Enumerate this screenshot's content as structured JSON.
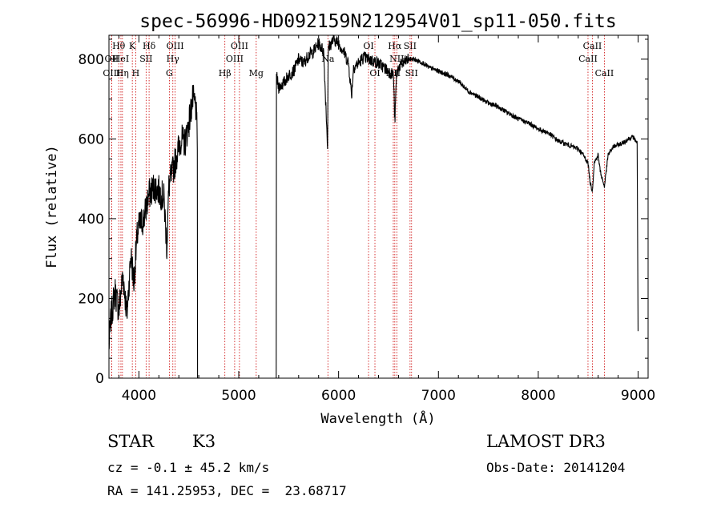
{
  "chart_data": {
    "type": "line",
    "title": "spec-56996-HD092159N212954V01_sp11-050.fits",
    "xlabel": "Wavelength (Å)",
    "ylabel": "Flux (relative)",
    "xlim": [
      3700,
      9100
    ],
    "ylim": [
      0,
      860
    ],
    "xticks": [
      4000,
      5000,
      6000,
      7000,
      8000,
      9000
    ],
    "yticks": [
      0,
      200,
      400,
      600,
      800
    ],
    "grid": false,
    "spectrum_anchors": {
      "x": [
        3700,
        3720,
        3760,
        3800,
        3840,
        3880,
        3920,
        3950,
        3980,
        4000,
        4050,
        4100,
        4150,
        4200,
        4250,
        4280,
        4300,
        4340,
        4380,
        4420,
        4460,
        4500,
        4540,
        4570,
        4585,
        4586,
        5375,
        5376,
        5400,
        5450,
        5500,
        5550,
        5600,
        5650,
        5700,
        5750,
        5800,
        5850,
        5890,
        5894,
        5900,
        5950,
        6000,
        6050,
        6100,
        6130,
        6150,
        6200,
        6250,
        6300,
        6350,
        6400,
        6450,
        6500,
        6550,
        6563,
        6580,
        6600,
        6650,
        6700,
        6750,
        6800,
        6850,
        6900,
        7000,
        7100,
        7200,
        7300,
        7400,
        7500,
        7600,
        7700,
        7800,
        7900,
        8000,
        8100,
        8200,
        8300,
        8400,
        8450,
        8498,
        8520,
        8542,
        8560,
        8600,
        8620,
        8662,
        8700,
        8750,
        8800,
        8850,
        8900,
        8950,
        8990,
        9000
      ],
      "y": [
        80,
        150,
        220,
        170,
        260,
        160,
        310,
        240,
        350,
        380,
        400,
        460,
        480,
        470,
        450,
        330,
        480,
        520,
        560,
        600,
        590,
        640,
        700,
        680,
        600,
        0,
        0,
        760,
        730,
        740,
        760,
        770,
        800,
        790,
        810,
        820,
        840,
        820,
        580,
        790,
        830,
        850,
        840,
        820,
        790,
        710,
        780,
        790,
        805,
        800,
        795,
        790,
        780,
        770,
        760,
        640,
        760,
        780,
        790,
        800,
        800,
        795,
        790,
        780,
        770,
        760,
        745,
        720,
        705,
        690,
        680,
        665,
        650,
        640,
        625,
        615,
        595,
        585,
        575,
        560,
        540,
        490,
        470,
        540,
        560,
        520,
        480,
        560,
        580,
        585,
        590,
        600,
        605,
        590,
        120
      ]
    },
    "line_markers": [
      {
        "label": "Hθ",
        "x": 3798,
        "row": 0
      },
      {
        "label": "OII",
        "x": 3727,
        "row": 1
      },
      {
        "label": "OIII",
        "x": 3727,
        "row": 2
      },
      {
        "label": "HeI",
        "x": 3820,
        "row": 1
      },
      {
        "label": "Hη",
        "x": 3835,
        "row": 2
      },
      {
        "label": "K",
        "x": 3934,
        "row": 0
      },
      {
        "label": "SII",
        "x": 4072,
        "row": 1
      },
      {
        "label": "H",
        "x": 3968,
        "row": 2
      },
      {
        "label": "Hδ",
        "x": 4102,
        "row": 0
      },
      {
        "label": "OIII",
        "x": 4363,
        "row": 0
      },
      {
        "label": "Hγ",
        "x": 4340,
        "row": 1
      },
      {
        "label": "G",
        "x": 4305,
        "row": 2
      },
      {
        "label": "OIII",
        "x": 5007,
        "row": 0
      },
      {
        "label": "OIII",
        "x": 4959,
        "row": 1
      },
      {
        "label": "Hβ",
        "x": 4861,
        "row": 2
      },
      {
        "label": "Mg",
        "x": 5175,
        "row": 2
      },
      {
        "label": "Na",
        "x": 5893,
        "row": 1
      },
      {
        "label": "OI",
        "x": 6300,
        "row": 0
      },
      {
        "label": "OI",
        "x": 6364,
        "row": 2
      },
      {
        "label": "Hα",
        "x": 6563,
        "row": 0
      },
      {
        "label": "NII",
        "x": 6583,
        "row": 1
      },
      {
        "label": "NII",
        "x": 6548,
        "row": 2
      },
      {
        "label": "SII",
        "x": 6716,
        "row": 0
      },
      {
        "label": "SII",
        "x": 6731,
        "row": 2
      },
      {
        "label": "CaII",
        "x": 8542,
        "row": 0
      },
      {
        "label": "CaII",
        "x": 8498,
        "row": 1
      },
      {
        "label": "CaII",
        "x": 8662,
        "row": 2
      }
    ]
  },
  "info": {
    "class_label": "STAR",
    "subclass": "K3",
    "survey": "LAMOST DR3",
    "cz_line": "cz = -0.1 ± 45.2 km/s",
    "obs_date_line": "Obs-Date: 20141204",
    "radec_line": "RA = 141.25953, DEC =  23.68717"
  },
  "colors": {
    "spectrum": "#000000",
    "marker_lines": "#cc0000",
    "frame": "#000000"
  }
}
